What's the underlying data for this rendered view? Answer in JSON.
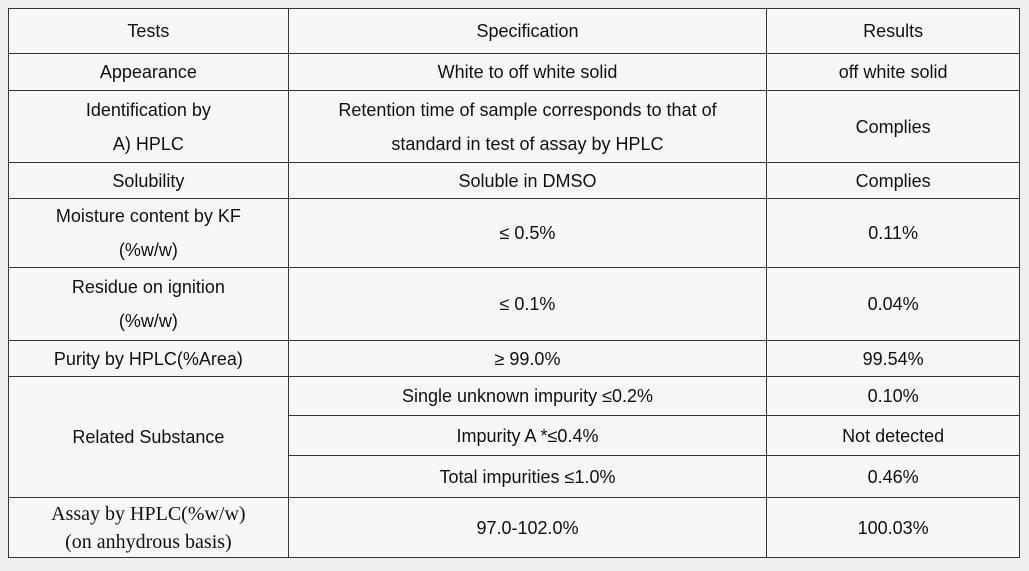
{
  "table": {
    "header": [
      "Tests",
      "Specification",
      "Results"
    ],
    "rows": [
      {
        "test": [
          "Appearance"
        ],
        "specification": [
          "White to off white solid"
        ],
        "result": [
          "off white solid"
        ]
      },
      {
        "test": [
          "Identification by",
          "A)  HPLC"
        ],
        "specification": [
          "Retention time of sample corresponds to that of",
          "standard in test of assay by HPLC"
        ],
        "result": [
          "Complies"
        ]
      },
      {
        "test": [
          "Solubility"
        ],
        "specification": [
          "Soluble in DMSO"
        ],
        "result": [
          "Complies"
        ]
      },
      {
        "test": [
          "Moisture content by KF",
          "(%w/w)"
        ],
        "specification": [
          "≤  0.5%"
        ],
        "result": [
          "0.11%"
        ]
      },
      {
        "test": [
          "Residue on ignition",
          "(%w/w)"
        ],
        "specification": [
          "≤  0.1%"
        ],
        "result": [
          "0.04%"
        ]
      },
      {
        "test": [
          "Purity by HPLC(%Area)"
        ],
        "specification": [
          "≥  99.0%"
        ],
        "result": [
          "99.54%"
        ]
      },
      {
        "test": [
          "Related Substance"
        ],
        "items": [
          {
            "specification": "Single unknown impurity  ≤0.2%",
            "result": "0.10%"
          },
          {
            "specification": "Impurity A *≤0.4%",
            "result": "Not detected"
          },
          {
            "specification": "Total impurities  ≤1.0%",
            "result": "0.46%"
          }
        ]
      },
      {
        "test": [
          "Assay by HPLC(%w/w)",
          "(on anhydrous basis)"
        ],
        "specification": [
          "97.0-102.0%"
        ],
        "result": [
          "100.03%"
        ]
      }
    ]
  }
}
